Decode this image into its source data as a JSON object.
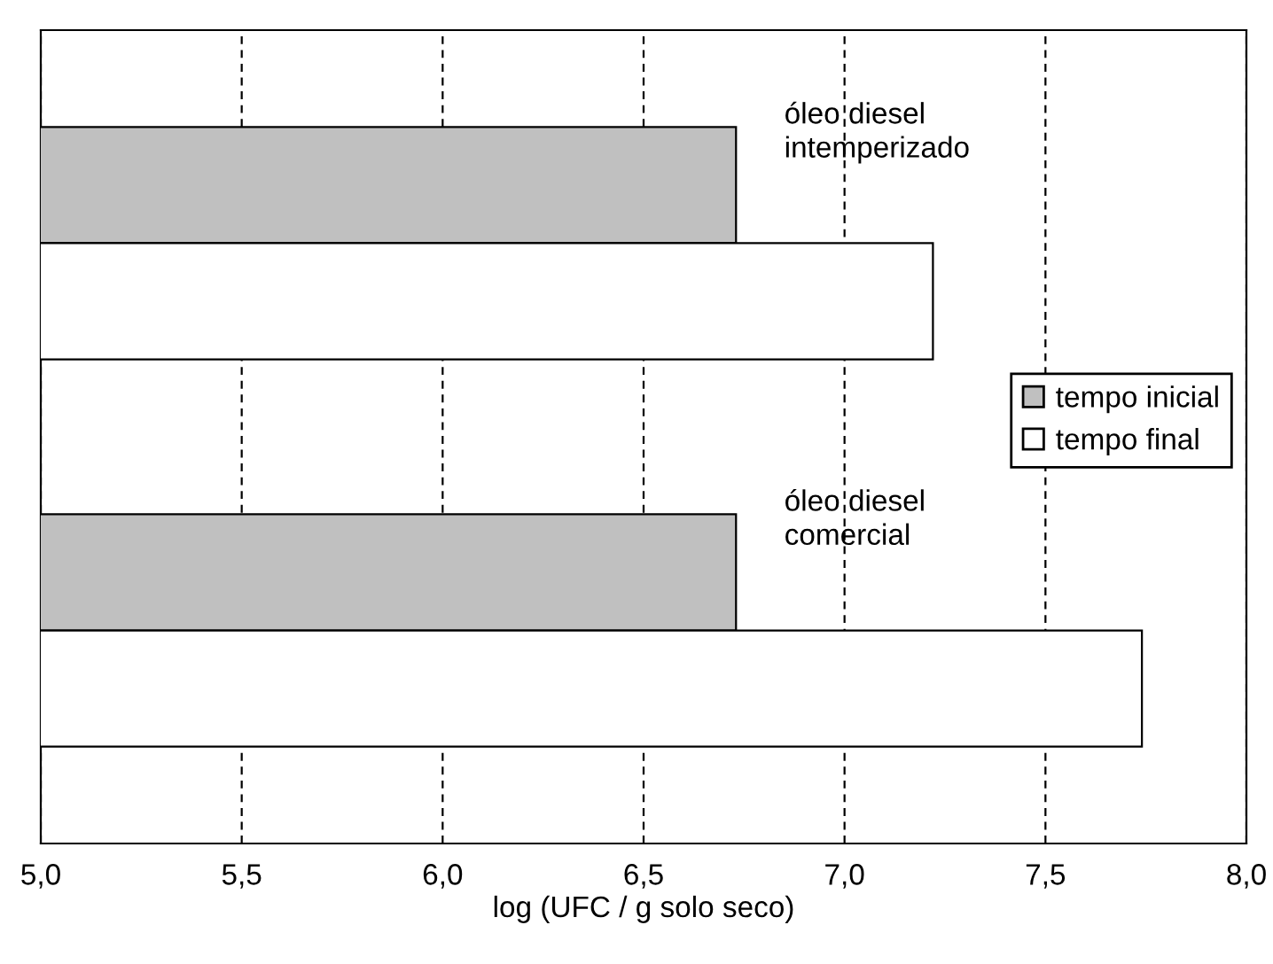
{
  "chart_data": {
    "type": "bar",
    "orientation": "horizontal",
    "categories": [
      "óleo diesel\nintemperizado",
      "óleo diesel\ncomercial"
    ],
    "series": [
      {
        "name": "tempo inicial",
        "color": "#c0c0c0",
        "values": [
          6.73,
          6.73
        ]
      },
      {
        "name": "tempo final",
        "color": "#ffffff",
        "values": [
          7.22,
          7.74
        ]
      }
    ],
    "xlabel": "log (UFC / g solo seco)",
    "xlim": [
      5.0,
      8.0
    ],
    "xticks": [
      {
        "value": 5.0,
        "label": "5,0"
      },
      {
        "value": 5.5,
        "label": "5,5"
      },
      {
        "value": 6.0,
        "label": "6,0"
      },
      {
        "value": 6.5,
        "label": "6,5"
      },
      {
        "value": 7.0,
        "label": "7,0"
      },
      {
        "value": 7.5,
        "label": "7,5"
      },
      {
        "value": 8.0,
        "label": "8,0"
      }
    ],
    "grid": "x",
    "line_style": "dashed",
    "legend": "right",
    "tick_labels": "x"
  }
}
